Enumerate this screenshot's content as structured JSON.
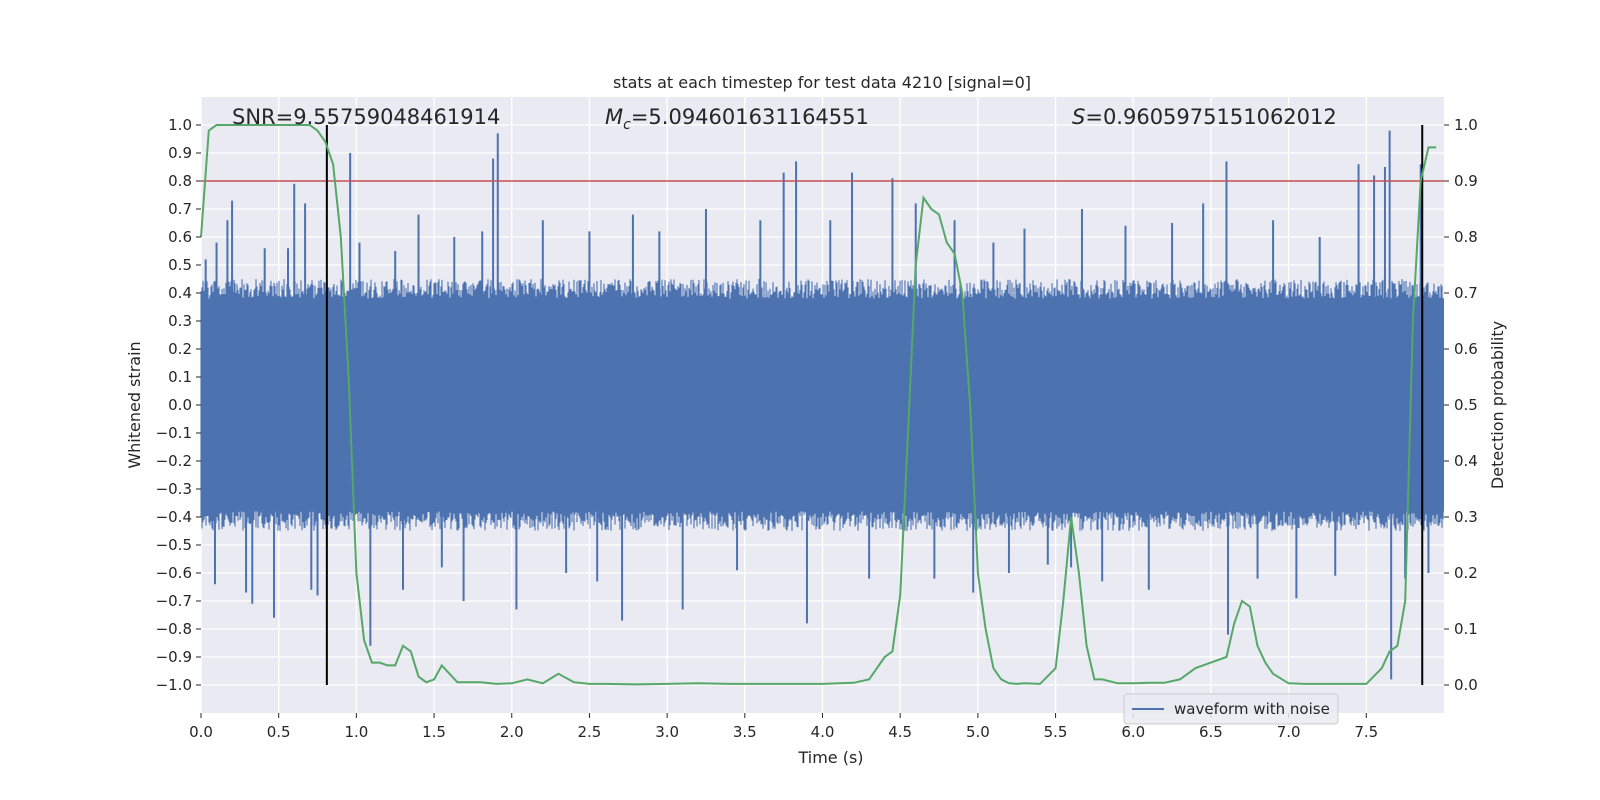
{
  "chart_data": {
    "type": "line",
    "title": "stats at each timestep for test data 4210 [signal=0]",
    "xlabel": "Time (s)",
    "ylabel": "Whitened strain",
    "y2label": "Detection probability",
    "xlim": [
      0.0,
      8.0
    ],
    "ylim": [
      -1.1,
      1.1
    ],
    "y2lim": [
      -0.05,
      1.05
    ],
    "xticks": [
      0.0,
      0.5,
      1.0,
      1.5,
      2.0,
      2.5,
      3.0,
      3.5,
      4.0,
      4.5,
      5.0,
      5.5,
      6.0,
      6.5,
      7.0,
      7.5
    ],
    "xtick_labels": [
      "0.0",
      "0.5",
      "1.0",
      "1.5",
      "2.0",
      "2.5",
      "3.0",
      "3.5",
      "4.0",
      "4.5",
      "5.0",
      "5.5",
      "6.0",
      "6.5",
      "7.0",
      "7.5"
    ],
    "yticks": [
      1.0,
      0.9,
      0.8,
      0.7,
      0.6,
      0.5,
      0.4,
      0.3,
      0.2,
      0.1,
      0.0,
      -0.1,
      -0.2,
      -0.3,
      -0.4,
      -0.5,
      -0.6,
      -0.7,
      -0.8,
      -0.9,
      -1.0
    ],
    "ytick_labels": [
      "1.0",
      "0.9",
      "0.8",
      "0.7",
      "0.6",
      "0.5",
      "0.4",
      "0.3",
      "0.2",
      "0.1",
      "0.0",
      "−0.1",
      "−0.2",
      "−0.3",
      "−0.4",
      "−0.5",
      "−0.6",
      "−0.7",
      "−0.8",
      "−0.9",
      "−1.0"
    ],
    "y2ticks": [
      1.0,
      0.9,
      0.8,
      0.7,
      0.6,
      0.5,
      0.4,
      0.3,
      0.2,
      0.1,
      0.0
    ],
    "y2tick_labels": [
      "1.0",
      "0.9",
      "0.8",
      "0.7",
      "0.6",
      "0.5",
      "0.4",
      "0.3",
      "0.2",
      "0.1",
      "0.0"
    ],
    "annotations": {
      "snr": "SNR=9.55759048461914",
      "mc_prefix": "M",
      "mc_sub": "c",
      "mc_value": "=5.094601631164551",
      "s_prefix": "S",
      "s_value": "=0.9605975151062012"
    },
    "threshold": {
      "value": 0.9,
      "axis": "right",
      "color": "#c44e52"
    },
    "vlines": [
      {
        "x": 0.81,
        "ymin": -1.0,
        "ymax": 1.0,
        "color": "#000000"
      },
      {
        "x": 7.86,
        "ymin": -1.0,
        "ymax": 1.0,
        "color": "#000000"
      }
    ],
    "waveform": {
      "name": "waveform with noise",
      "color": "#4c72b0",
      "band": 0.38,
      "envelope_min": -0.45,
      "envelope_max": 0.45,
      "spikes": [
        {
          "x": 0.03,
          "y": 0.52
        },
        {
          "x": 0.09,
          "y": -0.64
        },
        {
          "x": 0.1,
          "y": 0.58
        },
        {
          "x": 0.17,
          "y": 0.66
        },
        {
          "x": 0.2,
          "y": 0.73
        },
        {
          "x": 0.29,
          "y": -0.67
        },
        {
          "x": 0.33,
          "y": -0.71
        },
        {
          "x": 0.41,
          "y": 0.56
        },
        {
          "x": 0.47,
          "y": -0.76
        },
        {
          "x": 0.56,
          "y": 0.56
        },
        {
          "x": 0.6,
          "y": 0.79
        },
        {
          "x": 0.67,
          "y": 0.72
        },
        {
          "x": 0.71,
          "y": -0.66
        },
        {
          "x": 0.75,
          "y": -0.68
        },
        {
          "x": 0.82,
          "y": 0.42
        },
        {
          "x": 0.96,
          "y": 0.9
        },
        {
          "x": 1.02,
          "y": 0.58
        },
        {
          "x": 1.09,
          "y": -0.86
        },
        {
          "x": 1.25,
          "y": 0.55
        },
        {
          "x": 1.3,
          "y": -0.66
        },
        {
          "x": 1.4,
          "y": 0.68
        },
        {
          "x": 1.55,
          "y": -0.58
        },
        {
          "x": 1.63,
          "y": 0.6
        },
        {
          "x": 1.69,
          "y": -0.7
        },
        {
          "x": 1.81,
          "y": 0.62
        },
        {
          "x": 1.88,
          "y": 0.88
        },
        {
          "x": 1.91,
          "y": 0.97
        },
        {
          "x": 2.03,
          "y": -0.73
        },
        {
          "x": 2.2,
          "y": 0.66
        },
        {
          "x": 2.35,
          "y": -0.6
        },
        {
          "x": 2.5,
          "y": 0.62
        },
        {
          "x": 2.55,
          "y": -0.63
        },
        {
          "x": 2.71,
          "y": -0.77
        },
        {
          "x": 2.78,
          "y": 0.68
        },
        {
          "x": 2.95,
          "y": 0.62
        },
        {
          "x": 3.1,
          "y": -0.73
        },
        {
          "x": 3.25,
          "y": 0.7
        },
        {
          "x": 3.45,
          "y": -0.59
        },
        {
          "x": 3.6,
          "y": 0.66
        },
        {
          "x": 3.75,
          "y": 0.83
        },
        {
          "x": 3.83,
          "y": 0.87
        },
        {
          "x": 3.9,
          "y": -0.78
        },
        {
          "x": 4.05,
          "y": 0.66
        },
        {
          "x": 4.19,
          "y": 0.83
        },
        {
          "x": 4.3,
          "y": -0.62
        },
        {
          "x": 4.45,
          "y": 0.81
        },
        {
          "x": 4.6,
          "y": 0.72
        },
        {
          "x": 4.72,
          "y": -0.62
        },
        {
          "x": 4.85,
          "y": 0.66
        },
        {
          "x": 4.97,
          "y": -0.67
        },
        {
          "x": 5.1,
          "y": 0.58
        },
        {
          "x": 5.2,
          "y": -0.6
        },
        {
          "x": 5.3,
          "y": 0.63
        },
        {
          "x": 5.45,
          "y": -0.57
        },
        {
          "x": 5.6,
          "y": -0.58
        },
        {
          "x": 5.67,
          "y": 0.7
        },
        {
          "x": 5.8,
          "y": -0.63
        },
        {
          "x": 5.95,
          "y": 0.64
        },
        {
          "x": 6.1,
          "y": -0.66
        },
        {
          "x": 6.25,
          "y": 0.65
        },
        {
          "x": 6.45,
          "y": 0.72
        },
        {
          "x": 6.6,
          "y": 0.87
        },
        {
          "x": 6.61,
          "y": -0.82
        },
        {
          "x": 6.8,
          "y": -0.62
        },
        {
          "x": 6.9,
          "y": 0.66
        },
        {
          "x": 7.05,
          "y": -0.69
        },
        {
          "x": 7.2,
          "y": 0.6
        },
        {
          "x": 7.3,
          "y": -0.61
        },
        {
          "x": 7.45,
          "y": 0.86
        },
        {
          "x": 7.55,
          "y": 0.82
        },
        {
          "x": 7.62,
          "y": 0.85
        },
        {
          "x": 7.65,
          "y": 0.98
        },
        {
          "x": 7.66,
          "y": -0.98
        },
        {
          "x": 7.75,
          "y": -0.62
        },
        {
          "x": 7.85,
          "y": 0.86
        },
        {
          "x": 7.9,
          "y": -0.6
        }
      ]
    },
    "probability": {
      "name": "detection probability",
      "color": "#55a868",
      "x": [
        0.0,
        0.05,
        0.1,
        0.2,
        0.3,
        0.4,
        0.5,
        0.6,
        0.7,
        0.75,
        0.8,
        0.85,
        0.9,
        0.95,
        1.0,
        1.05,
        1.1,
        1.15,
        1.2,
        1.25,
        1.3,
        1.35,
        1.4,
        1.45,
        1.5,
        1.55,
        1.6,
        1.65,
        1.7,
        1.8,
        1.9,
        2.0,
        2.1,
        2.2,
        2.3,
        2.4,
        2.5,
        2.6,
        2.8,
        3.0,
        3.2,
        3.4,
        3.6,
        3.8,
        4.0,
        4.2,
        4.3,
        4.4,
        4.45,
        4.5,
        4.55,
        4.6,
        4.65,
        4.7,
        4.75,
        4.8,
        4.85,
        4.9,
        4.95,
        5.0,
        5.05,
        5.1,
        5.15,
        5.2,
        5.25,
        5.3,
        5.4,
        5.5,
        5.55,
        5.6,
        5.65,
        5.7,
        5.75,
        5.8,
        5.9,
        6.0,
        6.1,
        6.2,
        6.3,
        6.4,
        6.5,
        6.6,
        6.65,
        6.7,
        6.75,
        6.8,
        6.85,
        6.9,
        7.0,
        7.1,
        7.2,
        7.4,
        7.5,
        7.6,
        7.65,
        7.7,
        7.75,
        7.8,
        7.85,
        7.9,
        7.95
      ],
      "y": [
        0.8,
        0.99,
        1.0,
        1.0,
        1.0,
        1.0,
        1.0,
        1.0,
        1.0,
        0.99,
        0.97,
        0.93,
        0.8,
        0.55,
        0.2,
        0.08,
        0.04,
        0.04,
        0.035,
        0.035,
        0.07,
        0.06,
        0.015,
        0.005,
        0.01,
        0.035,
        0.02,
        0.005,
        0.005,
        0.005,
        0.002,
        0.003,
        0.01,
        0.003,
        0.02,
        0.005,
        0.002,
        0.002,
        0.001,
        0.002,
        0.003,
        0.002,
        0.002,
        0.002,
        0.002,
        0.004,
        0.01,
        0.05,
        0.06,
        0.16,
        0.45,
        0.75,
        0.87,
        0.85,
        0.84,
        0.79,
        0.77,
        0.7,
        0.5,
        0.2,
        0.1,
        0.03,
        0.01,
        0.003,
        0.002,
        0.003,
        0.002,
        0.03,
        0.15,
        0.3,
        0.2,
        0.07,
        0.01,
        0.01,
        0.003,
        0.003,
        0.004,
        0.004,
        0.01,
        0.03,
        0.04,
        0.05,
        0.11,
        0.15,
        0.14,
        0.07,
        0.04,
        0.02,
        0.003,
        0.002,
        0.002,
        0.002,
        0.002,
        0.03,
        0.06,
        0.07,
        0.15,
        0.65,
        0.9,
        0.96,
        0.96
      ]
    },
    "legend": {
      "label": "waveform with noise",
      "placement": "lower-right"
    },
    "grid": true
  }
}
